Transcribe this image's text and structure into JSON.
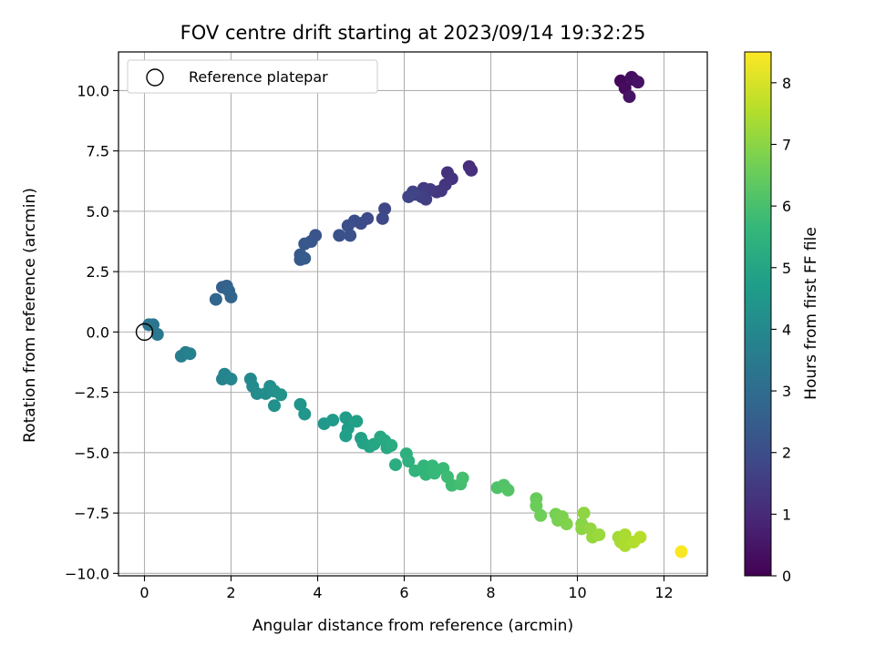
{
  "chart_data": {
    "type": "scatter",
    "title": "FOV centre drift starting at 2023/09/14 19:32:25",
    "xlabel": "Angular distance from reference (arcmin)",
    "ylabel": "Rotation from reference (arcmin)",
    "xlim": [
      -0.6,
      13.0
    ],
    "ylim": [
      -10.1,
      11.6
    ],
    "xticks": [
      0,
      2,
      4,
      6,
      8,
      10,
      12
    ],
    "xtick_labels": [
      "0",
      "2",
      "4",
      "6",
      "8",
      "10",
      "12"
    ],
    "yticks": [
      -10.0,
      -7.5,
      -5.0,
      -2.5,
      0.0,
      2.5,
      5.0,
      7.5,
      10.0
    ],
    "ytick_labels": [
      "−10.0",
      "−7.5",
      "−5.0",
      "−2.5",
      "0.0",
      "2.5",
      "5.0",
      "7.5",
      "10.0"
    ],
    "grid": true,
    "legend": {
      "placement": "top-left",
      "entries": [
        "Reference platepar"
      ]
    },
    "reference_point": {
      "x": 0,
      "y": 0
    },
    "colorbar": {
      "label": "Hours from first FF file",
      "range": [
        0,
        8.5
      ],
      "ticks": [
        0,
        1,
        2,
        3,
        4,
        5,
        6,
        7,
        8
      ],
      "tick_labels": [
        "0",
        "1",
        "2",
        "3",
        "4",
        "5",
        "6",
        "7",
        "8"
      ],
      "colormap": "viridis"
    },
    "points": [
      [
        11.0,
        10.4,
        0.2
      ],
      [
        11.1,
        10.1,
        0.25
      ],
      [
        11.25,
        10.55,
        0.3
      ],
      [
        11.3,
        10.45,
        0.35
      ],
      [
        11.4,
        10.35,
        0.4
      ],
      [
        11.2,
        9.75,
        0.45
      ],
      [
        7.5,
        6.85,
        1.1
      ],
      [
        7.55,
        6.7,
        1.15
      ],
      [
        7.0,
        6.6,
        1.2
      ],
      [
        7.1,
        6.35,
        1.25
      ],
      [
        6.95,
        6.1,
        1.3
      ],
      [
        6.85,
        5.85,
        1.35
      ],
      [
        6.75,
        5.8,
        1.4
      ],
      [
        6.6,
        5.9,
        1.45
      ],
      [
        6.45,
        5.95,
        1.5
      ],
      [
        6.5,
        5.5,
        1.55
      ],
      [
        6.4,
        5.6,
        1.6
      ],
      [
        6.25,
        5.7,
        1.65
      ],
      [
        6.2,
        5.8,
        1.7
      ],
      [
        6.1,
        5.6,
        1.75
      ],
      [
        5.55,
        5.1,
        1.8
      ],
      [
        5.5,
        4.7,
        1.85
      ],
      [
        5.15,
        4.7,
        1.9
      ],
      [
        5.0,
        4.5,
        1.95
      ],
      [
        4.85,
        4.6,
        2.0
      ],
      [
        4.7,
        4.4,
        2.05
      ],
      [
        4.75,
        4.0,
        2.1
      ],
      [
        4.5,
        4.0,
        2.15
      ],
      [
        3.95,
        4.0,
        2.2
      ],
      [
        3.85,
        3.75,
        2.25
      ],
      [
        3.7,
        3.65,
        2.3
      ],
      [
        3.6,
        3.2,
        2.35
      ],
      [
        3.6,
        3.0,
        2.4
      ],
      [
        3.7,
        3.05,
        2.45
      ],
      [
        1.8,
        1.85,
        2.6
      ],
      [
        1.9,
        1.9,
        2.65
      ],
      [
        1.95,
        1.7,
        2.7
      ],
      [
        2.0,
        1.45,
        2.75
      ],
      [
        1.65,
        1.35,
        2.8
      ],
      [
        0.1,
        0.3,
        3.3
      ],
      [
        0.2,
        0.3,
        3.35
      ],
      [
        0.3,
        -0.1,
        3.4
      ],
      [
        0.85,
        -1.0,
        3.6
      ],
      [
        0.95,
        -0.85,
        3.65
      ],
      [
        1.05,
        -0.9,
        3.7
      ],
      [
        1.8,
        -1.95,
        3.8
      ],
      [
        1.85,
        -1.75,
        3.85
      ],
      [
        2.0,
        -1.95,
        3.9
      ],
      [
        2.45,
        -1.95,
        4.0
      ],
      [
        2.5,
        -2.25,
        4.05
      ],
      [
        2.6,
        -2.55,
        4.1
      ],
      [
        2.8,
        -2.55,
        4.15
      ],
      [
        2.9,
        -2.25,
        4.2
      ],
      [
        3.0,
        -2.45,
        4.25
      ],
      [
        3.0,
        -3.05,
        4.3
      ],
      [
        3.15,
        -2.6,
        4.35
      ],
      [
        3.6,
        -3.0,
        4.4
      ],
      [
        3.7,
        -3.4,
        4.45
      ],
      [
        4.15,
        -3.8,
        4.55
      ],
      [
        4.35,
        -3.65,
        4.6
      ],
      [
        4.65,
        -3.55,
        4.65
      ],
      [
        4.7,
        -4.0,
        4.7
      ],
      [
        4.65,
        -4.3,
        4.75
      ],
      [
        4.9,
        -3.7,
        4.8
      ],
      [
        5.0,
        -4.4,
        4.85
      ],
      [
        5.05,
        -4.6,
        4.9
      ],
      [
        5.2,
        -4.75,
        4.95
      ],
      [
        5.3,
        -4.65,
        5.0
      ],
      [
        5.45,
        -4.35,
        5.05
      ],
      [
        5.55,
        -4.5,
        5.1
      ],
      [
        5.6,
        -4.8,
        5.15
      ],
      [
        5.7,
        -4.7,
        5.2
      ],
      [
        5.8,
        -5.5,
        5.3
      ],
      [
        6.05,
        -5.05,
        5.35
      ],
      [
        6.1,
        -5.35,
        5.4
      ],
      [
        6.25,
        -5.75,
        5.5
      ],
      [
        6.45,
        -5.55,
        5.55
      ],
      [
        6.5,
        -5.9,
        5.6
      ],
      [
        6.65,
        -5.55,
        5.65
      ],
      [
        6.7,
        -5.85,
        5.7
      ],
      [
        6.9,
        -5.65,
        5.75
      ],
      [
        7.0,
        -6.0,
        5.8
      ],
      [
        7.1,
        -6.35,
        5.85
      ],
      [
        7.3,
        -6.3,
        5.9
      ],
      [
        7.35,
        -6.05,
        5.95
      ],
      [
        8.15,
        -6.45,
        6.1
      ],
      [
        8.3,
        -6.35,
        6.15
      ],
      [
        8.4,
        -6.55,
        6.2
      ],
      [
        9.05,
        -6.9,
        6.5
      ],
      [
        9.05,
        -7.2,
        6.55
      ],
      [
        9.15,
        -7.6,
        6.6
      ],
      [
        9.5,
        -7.55,
        6.7
      ],
      [
        9.55,
        -7.8,
        6.75
      ],
      [
        9.65,
        -7.65,
        6.8
      ],
      [
        9.75,
        -7.95,
        6.85
      ],
      [
        10.1,
        -7.95,
        6.95
      ],
      [
        10.1,
        -8.15,
        7.0
      ],
      [
        10.15,
        -7.5,
        7.05
      ],
      [
        10.3,
        -8.15,
        7.1
      ],
      [
        10.35,
        -8.5,
        7.15
      ],
      [
        10.5,
        -8.4,
        7.2
      ],
      [
        10.95,
        -8.5,
        7.3
      ],
      [
        11.0,
        -8.7,
        7.35
      ],
      [
        11.1,
        -8.4,
        7.4
      ],
      [
        11.1,
        -8.85,
        7.45
      ],
      [
        11.3,
        -8.7,
        7.5
      ],
      [
        11.45,
        -8.5,
        7.55
      ],
      [
        12.4,
        -9.1,
        8.45
      ]
    ]
  }
}
